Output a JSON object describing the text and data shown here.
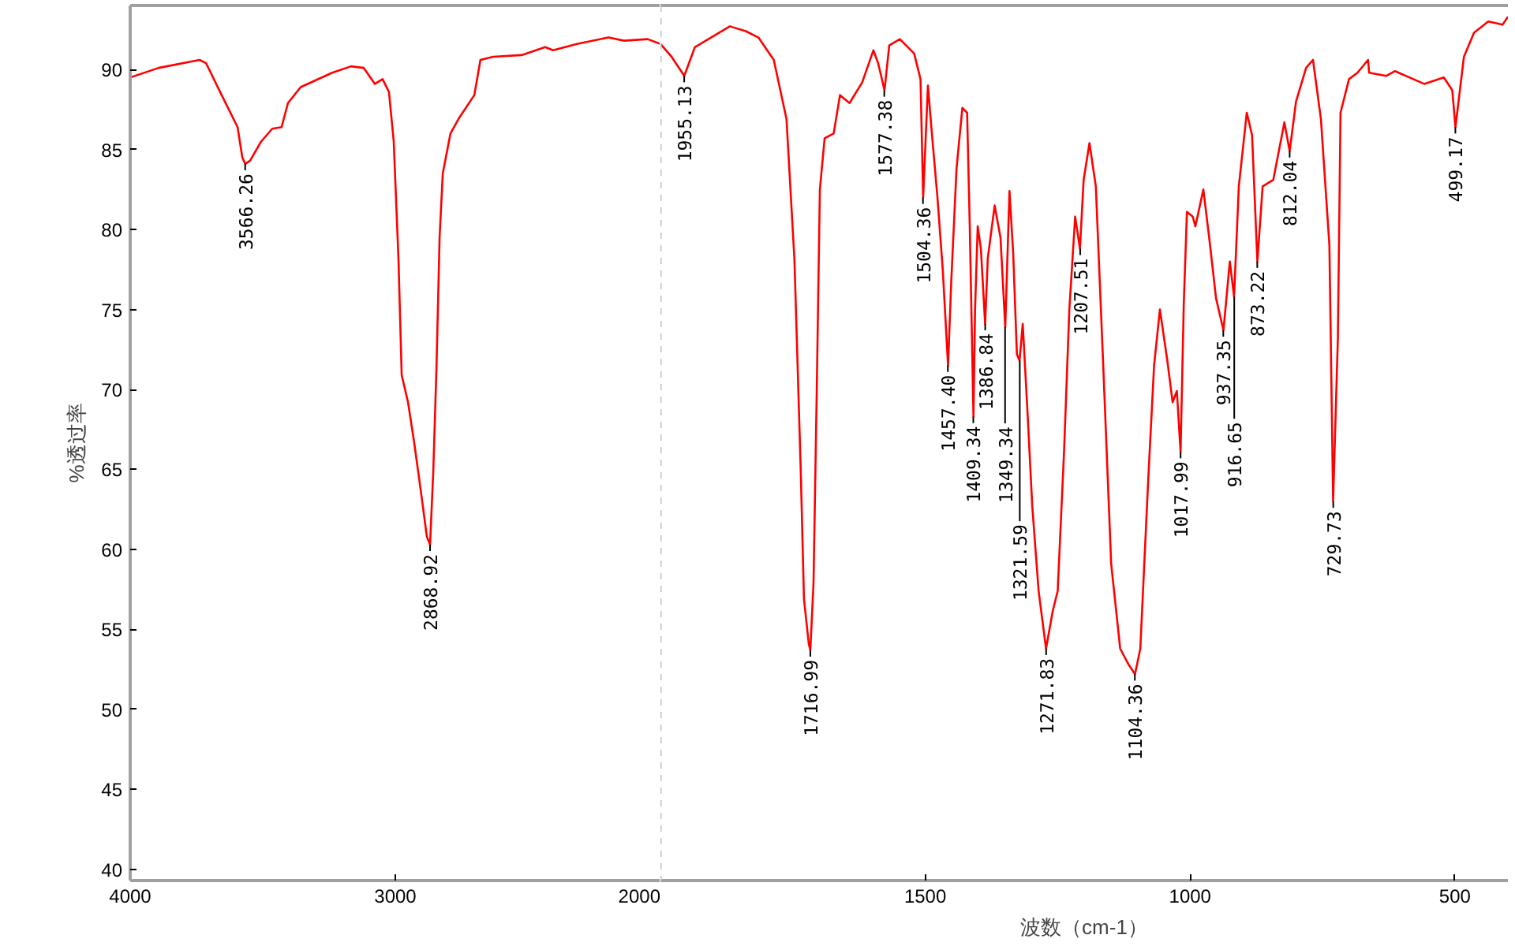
{
  "chart_data": [
    {
      "type": "line",
      "ylabel": "%透过率",
      "xlim": [
        4000,
        2000
      ],
      "ylim": [
        39.3,
        94
      ],
      "xticks": [
        4000,
        3000,
        2000
      ],
      "yticks": [
        40,
        45,
        50,
        55,
        60,
        65,
        70,
        75,
        80,
        85,
        90
      ],
      "marker": "none",
      "line_style": "solid",
      "series": [
        {
          "color": "#ff0000",
          "x": [
            4000,
            3893,
            3738,
            3714,
            3655,
            3595,
            3577,
            3566,
            3548,
            3506,
            3464,
            3429,
            3405,
            3357,
            3238,
            3167,
            3119,
            3077,
            3048,
            3024,
            3006,
            2988,
            2976,
            2952,
            2929,
            2905,
            2881,
            2869,
            2857,
            2845,
            2833,
            2821,
            2792,
            2762,
            2702,
            2679,
            2631,
            2524,
            2435,
            2405,
            2315,
            2196,
            2137,
            2048,
            2000
          ],
          "values": [
            89.5,
            90.1,
            90.6,
            90.4,
            88.4,
            86.4,
            84.5,
            84.1,
            84.3,
            85.5,
            86.3,
            86.4,
            87.9,
            88.9,
            89.8,
            90.2,
            90.1,
            89.1,
            89.4,
            88.6,
            85.5,
            78.1,
            70.9,
            69.2,
            66.7,
            63.8,
            60.8,
            60.3,
            64.8,
            71.2,
            79.5,
            83.5,
            86.0,
            86.9,
            88.4,
            90.6,
            90.8,
            90.9,
            91.4,
            91.2,
            91.6,
            92.0,
            91.8,
            91.9,
            91.6
          ]
        }
      ],
      "annotations": [
        {
          "text": "3566.26",
          "x": 3566.26,
          "y": 84.1
        },
        {
          "text": "2868.92",
          "x": 2868.92,
          "y": 60.3
        }
      ]
    },
    {
      "type": "line",
      "xlabel": "波数（cm-1）",
      "xlim": [
        2000,
        400
      ],
      "ylim": [
        39.3,
        94
      ],
      "xticks": [
        1500,
        1000,
        500
      ],
      "yticks": [
        40,
        45,
        50,
        55,
        60,
        65,
        70,
        75,
        80,
        85,
        90
      ],
      "tick_labels": "x",
      "ref_lines": [
        {
          "axis": "x",
          "value": 2000,
          "color": "#c0c0c0",
          "line_style": "dashed"
        }
      ],
      "marker": "none",
      "line_style": "solid",
      "series": [
        {
          "color": "#ff0000",
          "x": [
            2000,
            1979,
            1955,
            1935,
            1869,
            1839,
            1815,
            1786,
            1762,
            1747,
            1735,
            1729,
            1720,
            1717,
            1711,
            1705,
            1699,
            1690,
            1673,
            1661,
            1643,
            1619,
            1598,
            1589,
            1577,
            1568,
            1548,
            1521,
            1509,
            1504,
            1495,
            1488,
            1477,
            1467,
            1457,
            1451,
            1441,
            1430,
            1421,
            1416,
            1409,
            1406,
            1401,
            1395,
            1387,
            1382,
            1369,
            1358,
            1349,
            1341,
            1334,
            1327,
            1322,
            1316,
            1307,
            1298,
            1286,
            1272,
            1259,
            1250,
            1238,
            1228,
            1217,
            1208,
            1201,
            1190,
            1178,
            1164,
            1149,
            1132,
            1116,
            1104,
            1094,
            1079,
            1068,
            1057,
            1043,
            1033,
            1025,
            1018,
            1012,
            1006,
            995,
            990,
            975,
            964,
            951,
            937,
            925,
            917,
            908,
            893,
            883,
            873,
            863,
            843,
            822,
            812,
            800,
            781,
            768,
            753,
            737,
            730,
            721,
            716,
            700,
            684,
            664,
            662,
            630,
            613,
            558,
            521,
            505,
            499,
            483,
            464,
            437,
            410,
            400
          ],
          "values": [
            91.6,
            90.8,
            89.6,
            91.4,
            92.7,
            92.4,
            92.0,
            90.6,
            86.9,
            78.1,
            64.8,
            56.9,
            54.1,
            53.7,
            57.9,
            69.7,
            82.5,
            85.7,
            86.0,
            88.4,
            87.9,
            89.2,
            91.2,
            90.4,
            88.7,
            91.5,
            91.9,
            91.0,
            89.4,
            82.0,
            89.0,
            86.2,
            82.0,
            77.5,
            71.5,
            76.7,
            83.8,
            87.6,
            87.3,
            80.2,
            68.3,
            75.0,
            80.2,
            78.8,
            74.1,
            78.2,
            81.5,
            79.5,
            73.9,
            82.4,
            78.5,
            72.2,
            71.8,
            74.1,
            68.6,
            62.7,
            57.4,
            53.8,
            56.2,
            57.4,
            66.1,
            75.0,
            80.8,
            78.8,
            83.1,
            85.4,
            82.7,
            71.5,
            59.1,
            53.8,
            52.8,
            52.2,
            53.8,
            64.4,
            71.5,
            75.0,
            71.8,
            69.2,
            69.9,
            66.1,
            75.3,
            81.1,
            80.8,
            80.2,
            82.5,
            79.5,
            75.7,
            73.7,
            78.0,
            75.8,
            82.7,
            87.3,
            85.9,
            78.0,
            82.7,
            83.1,
            86.7,
            84.9,
            88.0,
            90.1,
            90.6,
            86.9,
            79.0,
            63.0,
            73.2,
            87.3,
            89.4,
            89.8,
            90.6,
            89.8,
            89.6,
            89.9,
            89.1,
            89.5,
            88.7,
            86.4,
            90.8,
            92.3,
            93.0,
            92.8,
            93.3
          ]
        }
      ],
      "annotations": [
        {
          "text": "1955.13",
          "x": 1955.13,
          "y": 89.6
        },
        {
          "text": "1716.99",
          "x": 1716.99,
          "y": 53.7
        },
        {
          "text": "1577.38",
          "x": 1577.38,
          "y": 88.7
        },
        {
          "text": "1504.36",
          "x": 1504.36,
          "y": 82.0
        },
        {
          "text": "1457.40",
          "x": 1457.4,
          "y": 71.5
        },
        {
          "text": "1409.34",
          "x": 1409.34,
          "y": 68.3
        },
        {
          "text": "1386.84",
          "x": 1386.84,
          "y": 74.1
        },
        {
          "text": "1349.34",
          "x": 1349.34,
          "y": 73.9
        },
        {
          "text": "1321.59",
          "x": 1321.59,
          "y": 71.8
        },
        {
          "text": "1271.83",
          "x": 1271.83,
          "y": 53.8
        },
        {
          "text": "1207.51",
          "x": 1207.51,
          "y": 78.8
        },
        {
          "text": "1104.36",
          "x": 1104.36,
          "y": 52.2
        },
        {
          "text": "1017.99",
          "x": 1017.99,
          "y": 66.1
        },
        {
          "text": "937.35",
          "x": 937.35,
          "y": 73.7
        },
        {
          "text": "916.65",
          "x": 916.65,
          "y": 75.8
        },
        {
          "text": "873.22",
          "x": 873.22,
          "y": 78.0
        },
        {
          "text": "812.04",
          "x": 812.04,
          "y": 84.9
        },
        {
          "text": "729.73",
          "x": 729.73,
          "y": 63.0
        },
        {
          "text": "499.17",
          "x": 499.17,
          "y": 86.4
        }
      ]
    }
  ]
}
